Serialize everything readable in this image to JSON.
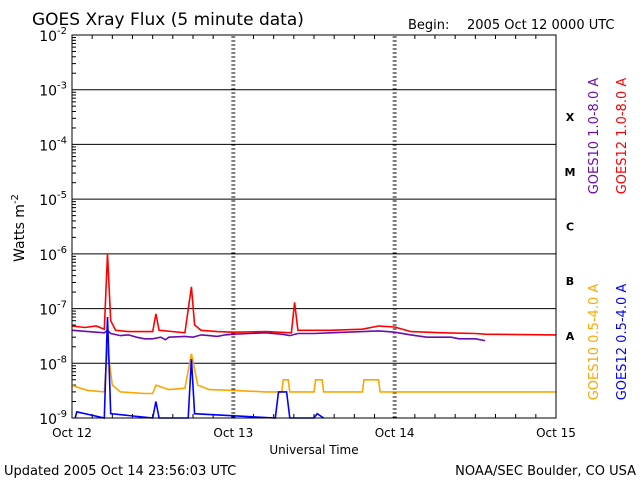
{
  "chart_data": {
    "type": "line",
    "title": "GOES Xray Flux (5 minute data)",
    "begin_label": "Begin:",
    "begin_value": "2005 Oct 12 0000 UTC",
    "xlabel": "Universal Time",
    "ylabel_base": "Watts m",
    "ylabel_exponent": "-2",
    "x_ticks": [
      "Oct 12",
      "Oct 13",
      "Oct 14",
      "Oct 15"
    ],
    "x_tick_days": [
      0,
      1,
      2,
      3
    ],
    "xlim_days": [
      0,
      3
    ],
    "y_scale": "log",
    "ylim": [
      1e-09,
      0.01
    ],
    "y_ticks": [
      {
        "base": "10",
        "exp": "-2",
        "value": 0.01
      },
      {
        "base": "10",
        "exp": "-3",
        "value": 0.001
      },
      {
        "base": "10",
        "exp": "-4",
        "value": 0.0001
      },
      {
        "base": "10",
        "exp": "-5",
        "value": 1e-05
      },
      {
        "base": "10",
        "exp": "-6",
        "value": 1e-06
      },
      {
        "base": "10",
        "exp": "-7",
        "value": 1e-07
      },
      {
        "base": "10",
        "exp": "-8",
        "value": 1e-08
      },
      {
        "base": "10",
        "exp": "-9",
        "value": 1e-09
      }
    ],
    "flare_classes": [
      {
        "label": "X",
        "lower": 0.0001,
        "upper": 0.001
      },
      {
        "label": "M",
        "lower": 1e-05,
        "upper": 0.0001
      },
      {
        "label": "C",
        "lower": 1e-06,
        "upper": 1e-05
      },
      {
        "label": "B",
        "lower": 1e-07,
        "upper": 1e-06
      },
      {
        "label": "A",
        "lower": 1e-08,
        "upper": 1e-07
      }
    ],
    "legend_placement": "right",
    "series": [
      {
        "name": "GOES10 1.0-8.0 A",
        "color": "#6a0dad",
        "points": [
          [
            0,
            4e-08
          ],
          [
            0.1,
            3.8e-08
          ],
          [
            0.2,
            3.6e-08
          ],
          [
            0.22,
            4e-08
          ],
          [
            0.24,
            3.5e-08
          ],
          [
            0.3,
            3.2e-08
          ],
          [
            0.35,
            3.3e-08
          ],
          [
            0.4,
            3e-08
          ],
          [
            0.45,
            2.8e-08
          ],
          [
            0.5,
            2.8e-08
          ],
          [
            0.55,
            3e-08
          ],
          [
            0.58,
            2.7e-08
          ],
          [
            0.6,
            3e-08
          ],
          [
            0.7,
            3.1e-08
          ],
          [
            0.75,
            3e-08
          ],
          [
            0.8,
            3.3e-08
          ],
          [
            0.85,
            3.2e-08
          ],
          [
            0.9,
            3.1e-08
          ],
          [
            0.95,
            3.3e-08
          ],
          [
            1.0,
            3.4e-08
          ],
          [
            1.1,
            3.5e-08
          ],
          [
            1.2,
            3.6e-08
          ],
          [
            1.3,
            3.4e-08
          ],
          [
            1.35,
            3.2e-08
          ],
          [
            1.4,
            3.5e-08
          ],
          [
            1.5,
            3.5e-08
          ],
          [
            1.6,
            3.6e-08
          ],
          [
            1.7,
            3.7e-08
          ],
          [
            1.8,
            3.8e-08
          ],
          [
            1.9,
            3.9e-08
          ],
          [
            2.0,
            3.7e-08
          ],
          [
            2.1,
            3.3e-08
          ],
          [
            2.2,
            3e-08
          ],
          [
            2.35,
            3e-08
          ],
          [
            2.4,
            2.8e-08
          ],
          [
            2.5,
            2.8e-08
          ],
          [
            2.56,
            2.6e-08
          ]
        ]
      },
      {
        "name": "GOES12 1.0-8.0 A",
        "color": "#ff0000",
        "points": [
          [
            0,
            4.8e-08
          ],
          [
            0.08,
            4.5e-08
          ],
          [
            0.15,
            4.8e-08
          ],
          [
            0.2,
            4.2e-08
          ],
          [
            0.22,
            1e-06
          ],
          [
            0.24,
            6e-08
          ],
          [
            0.27,
            4e-08
          ],
          [
            0.35,
            3.8e-08
          ],
          [
            0.5,
            3.8e-08
          ],
          [
            0.52,
            8e-08
          ],
          [
            0.54,
            4e-08
          ],
          [
            0.7,
            3.6e-08
          ],
          [
            0.74,
            2.5e-07
          ],
          [
            0.76,
            5e-08
          ],
          [
            0.8,
            4e-08
          ],
          [
            0.9,
            3.8e-08
          ],
          [
            1.0,
            3.7e-08
          ],
          [
            1.2,
            3.8e-08
          ],
          [
            1.36,
            3.6e-08
          ],
          [
            1.38,
            1.3e-07
          ],
          [
            1.4,
            4e-08
          ],
          [
            1.6,
            4e-08
          ],
          [
            1.8,
            4.2e-08
          ],
          [
            1.9,
            4.8e-08
          ],
          [
            2.0,
            4.6e-08
          ],
          [
            2.1,
            3.8e-08
          ],
          [
            2.3,
            3.6e-08
          ],
          [
            2.5,
            3.5e-08
          ],
          [
            2.56,
            3.4e-08
          ],
          [
            3.0,
            3.3e-08
          ]
        ]
      },
      {
        "name": "GOES10 0.5-4.0 A",
        "color": "#ffa500",
        "points": [
          [
            0,
            4e-09
          ],
          [
            0.05,
            3.5e-09
          ],
          [
            0.1,
            3.2e-09
          ],
          [
            0.2,
            3e-09
          ],
          [
            0.22,
            2e-08
          ],
          [
            0.25,
            4e-09
          ],
          [
            0.3,
            3e-09
          ],
          [
            0.45,
            2.8e-09
          ],
          [
            0.5,
            2.8e-09
          ],
          [
            0.52,
            4e-09
          ],
          [
            0.6,
            3.3e-09
          ],
          [
            0.7,
            3.5e-09
          ],
          [
            0.74,
            1.5e-08
          ],
          [
            0.78,
            4e-09
          ],
          [
            0.85,
            3.3e-09
          ],
          [
            1.0,
            3.2e-09
          ],
          [
            1.2,
            3e-09
          ],
          [
            1.3,
            3e-09
          ],
          [
            1.31,
            5e-09
          ],
          [
            1.34,
            5e-09
          ],
          [
            1.35,
            3e-09
          ],
          [
            1.5,
            3e-09
          ],
          [
            1.51,
            5e-09
          ],
          [
            1.55,
            5e-09
          ],
          [
            1.56,
            3e-09
          ],
          [
            1.8,
            3e-09
          ],
          [
            1.81,
            5e-09
          ],
          [
            1.9,
            5e-09
          ],
          [
            1.91,
            3e-09
          ],
          [
            2.2,
            3e-09
          ],
          [
            2.5,
            3e-09
          ],
          [
            3.0,
            3e-09
          ]
        ]
      },
      {
        "name": "GOES12 0.5-4.0 A",
        "color": "#0000ff",
        "points": [
          [
            0.02,
            1e-09
          ],
          [
            0.03,
            1.3e-09
          ],
          [
            0.2,
            1e-09
          ],
          [
            0.22,
            7e-08
          ],
          [
            0.24,
            1.2e-09
          ],
          [
            0.5,
            1e-09
          ],
          [
            0.52,
            2e-09
          ],
          [
            0.54,
            1e-09
          ],
          [
            0.72,
            1e-09
          ],
          [
            0.74,
            1.2e-08
          ],
          [
            0.76,
            1.2e-09
          ],
          [
            1.26,
            1e-09
          ],
          [
            1.28,
            3e-09
          ],
          [
            1.33,
            3e-09
          ],
          [
            1.35,
            1e-09
          ],
          [
            1.5,
            1e-09
          ],
          [
            1.52,
            1.2e-09
          ],
          [
            1.56,
            1e-09
          ]
        ]
      }
    ],
    "footer_left": "Updated 2005 Oct 14 23:56:03 UTC",
    "footer_right": "NOAA/SEC Boulder, CO USA"
  }
}
